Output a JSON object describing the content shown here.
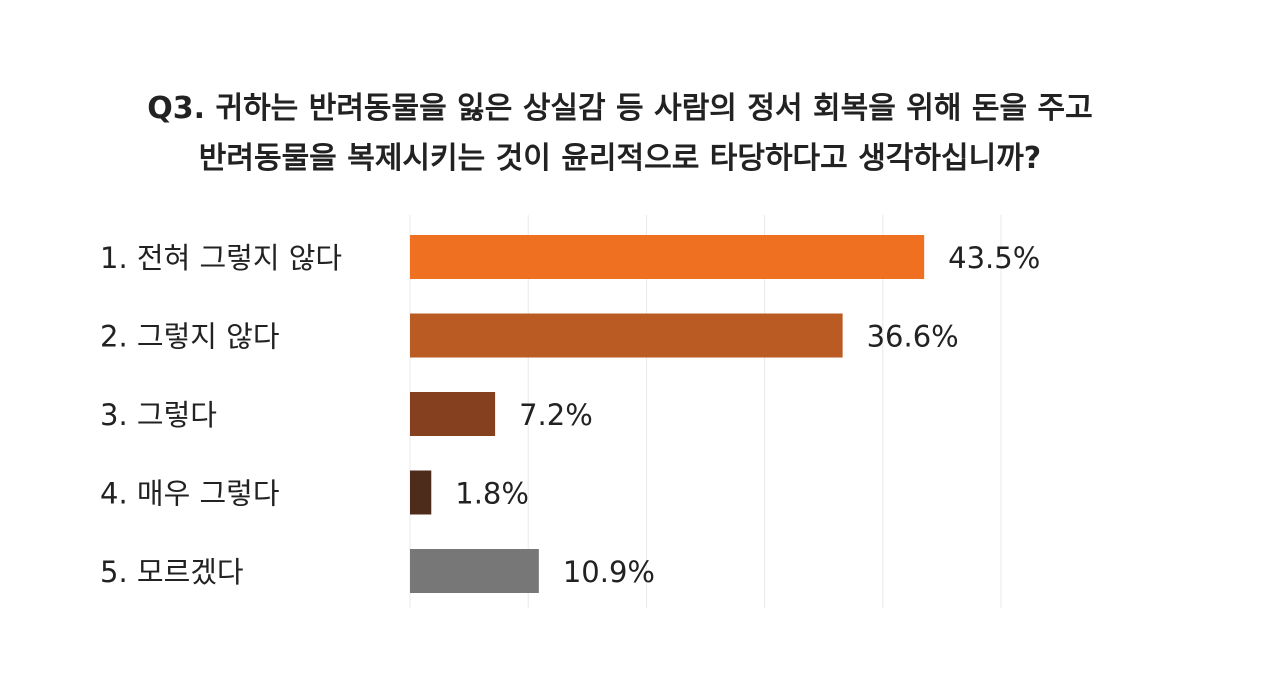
{
  "chart_data": {
    "type": "bar",
    "orientation": "horizontal",
    "title": "Q3. 귀하는 반려동물을 잃은 상실감 등 사람의 정서 회복을 위해 돈을 주고 반려동물을 복제시키는 것이 윤리적으로 타당하다고 생각하십니까?",
    "title_lines": [
      "Q3. 귀하는 반려동물을 잃은 상실감 등 사람의 정서 회복을 위해 돈을 주고",
      "반려동물을 복제시키는 것이 윤리적으로 타당하다고 생각하십니까?"
    ],
    "categories": [
      "1. 전혀 그렇지 않다",
      "2. 그렇지 않다",
      "3. 그렇다",
      "4. 매우 그렇다",
      "5. 모르겠다"
    ],
    "values": [
      43.5,
      36.6,
      7.2,
      1.8,
      10.9
    ],
    "value_labels": [
      "43.5%",
      "36.6%",
      "7.2%",
      "1.8%",
      "10.9%"
    ],
    "colors": [
      "#f07022",
      "#b95b22",
      "#84401f",
      "#4e2c1c",
      "#777777"
    ],
    "xlim": [
      0,
      50
    ],
    "grid": true,
    "grid_step": 10,
    "legend": "none"
  }
}
